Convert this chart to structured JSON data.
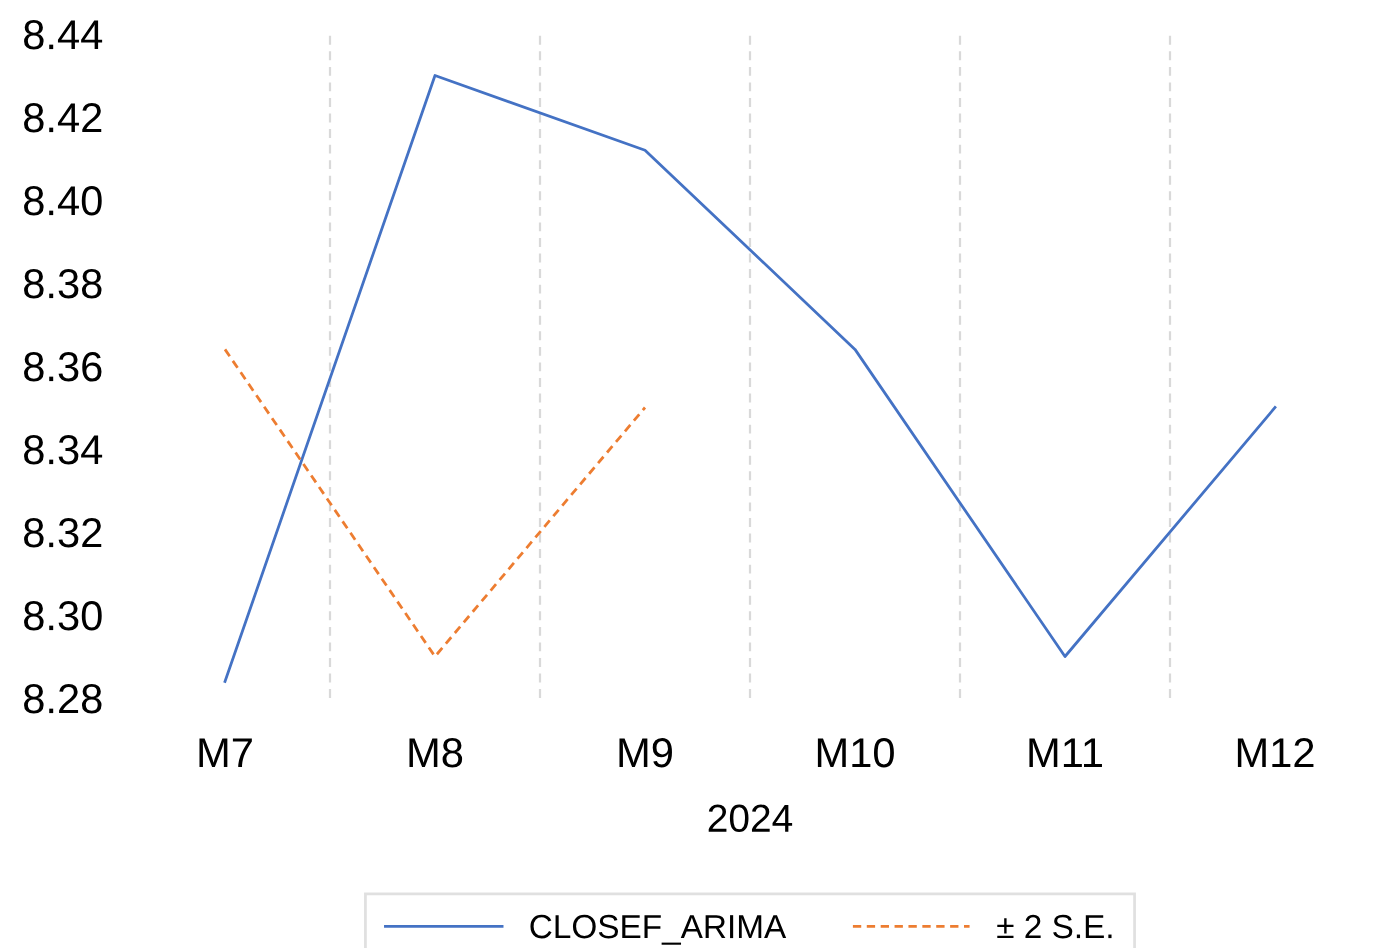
{
  "chart_data": {
    "type": "line",
    "xlabel": "2024",
    "categories": [
      "M7",
      "M8",
      "M9",
      "M10",
      "M11",
      "M12"
    ],
    "series": [
      {
        "name": "CLOSEF_ARIMA",
        "color": "#4472c4",
        "line_style": "solid",
        "values": [
          8.284,
          8.43,
          8.412,
          8.364,
          8.29,
          8.35
        ]
      },
      {
        "name": "± 2 S.E.",
        "color": "#ed7d31",
        "line_style": "dashed",
        "values": [
          8.364,
          8.29,
          8.35,
          null,
          null,
          null
        ]
      }
    ],
    "ylim": [
      8.28,
      8.44
    ],
    "yticks": [
      {
        "value": 8.28,
        "label": "8.28"
      },
      {
        "value": 8.3,
        "label": "8.30"
      },
      {
        "value": 8.32,
        "label": "8.32"
      },
      {
        "value": 8.34,
        "label": "8.34"
      },
      {
        "value": 8.36,
        "label": "8.36"
      },
      {
        "value": 8.38,
        "label": "8.38"
      },
      {
        "value": 8.4,
        "label": "8.40"
      },
      {
        "value": 8.42,
        "label": "8.42"
      },
      {
        "value": 8.44,
        "label": "8.44"
      }
    ],
    "grid": "x",
    "legend": "bottom",
    "marker": "none"
  }
}
